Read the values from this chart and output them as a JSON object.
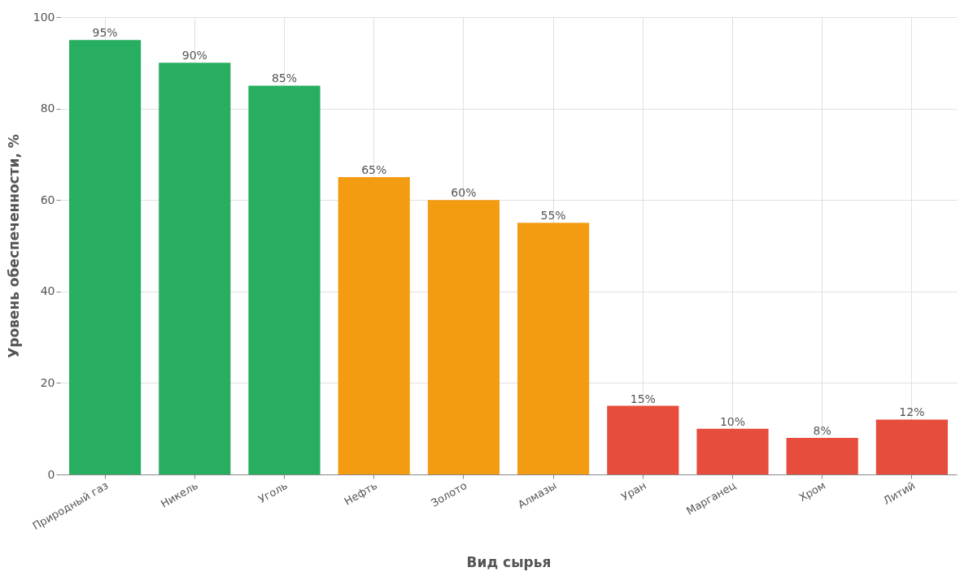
{
  "chart_data": {
    "type": "bar",
    "xlabel": "Вид сырья",
    "ylabel": "Уровень обеспеченности, %",
    "categories": [
      "Природный газ",
      "Никель",
      "Уголь",
      "Нефть",
      "Золото",
      "Алмазы",
      "Уран",
      "Марганец",
      "Хром",
      "Литий"
    ],
    "values": [
      95,
      90,
      85,
      65,
      60,
      55,
      15,
      10,
      8,
      12
    ],
    "colors": [
      "#27ae60",
      "#27ae60",
      "#27ae60",
      "#f39c12",
      "#f39c12",
      "#f39c12",
      "#e74c3c",
      "#e74c3c",
      "#e74c3c",
      "#e74c3c"
    ],
    "value_labels": [
      "95%",
      "90%",
      "85%",
      "65%",
      "60%",
      "55%",
      "15%",
      "10%",
      "8%",
      "12%"
    ],
    "ylim": [
      0,
      100
    ],
    "yticks": [
      0,
      20,
      40,
      60,
      80,
      100
    ],
    "grid": true
  }
}
